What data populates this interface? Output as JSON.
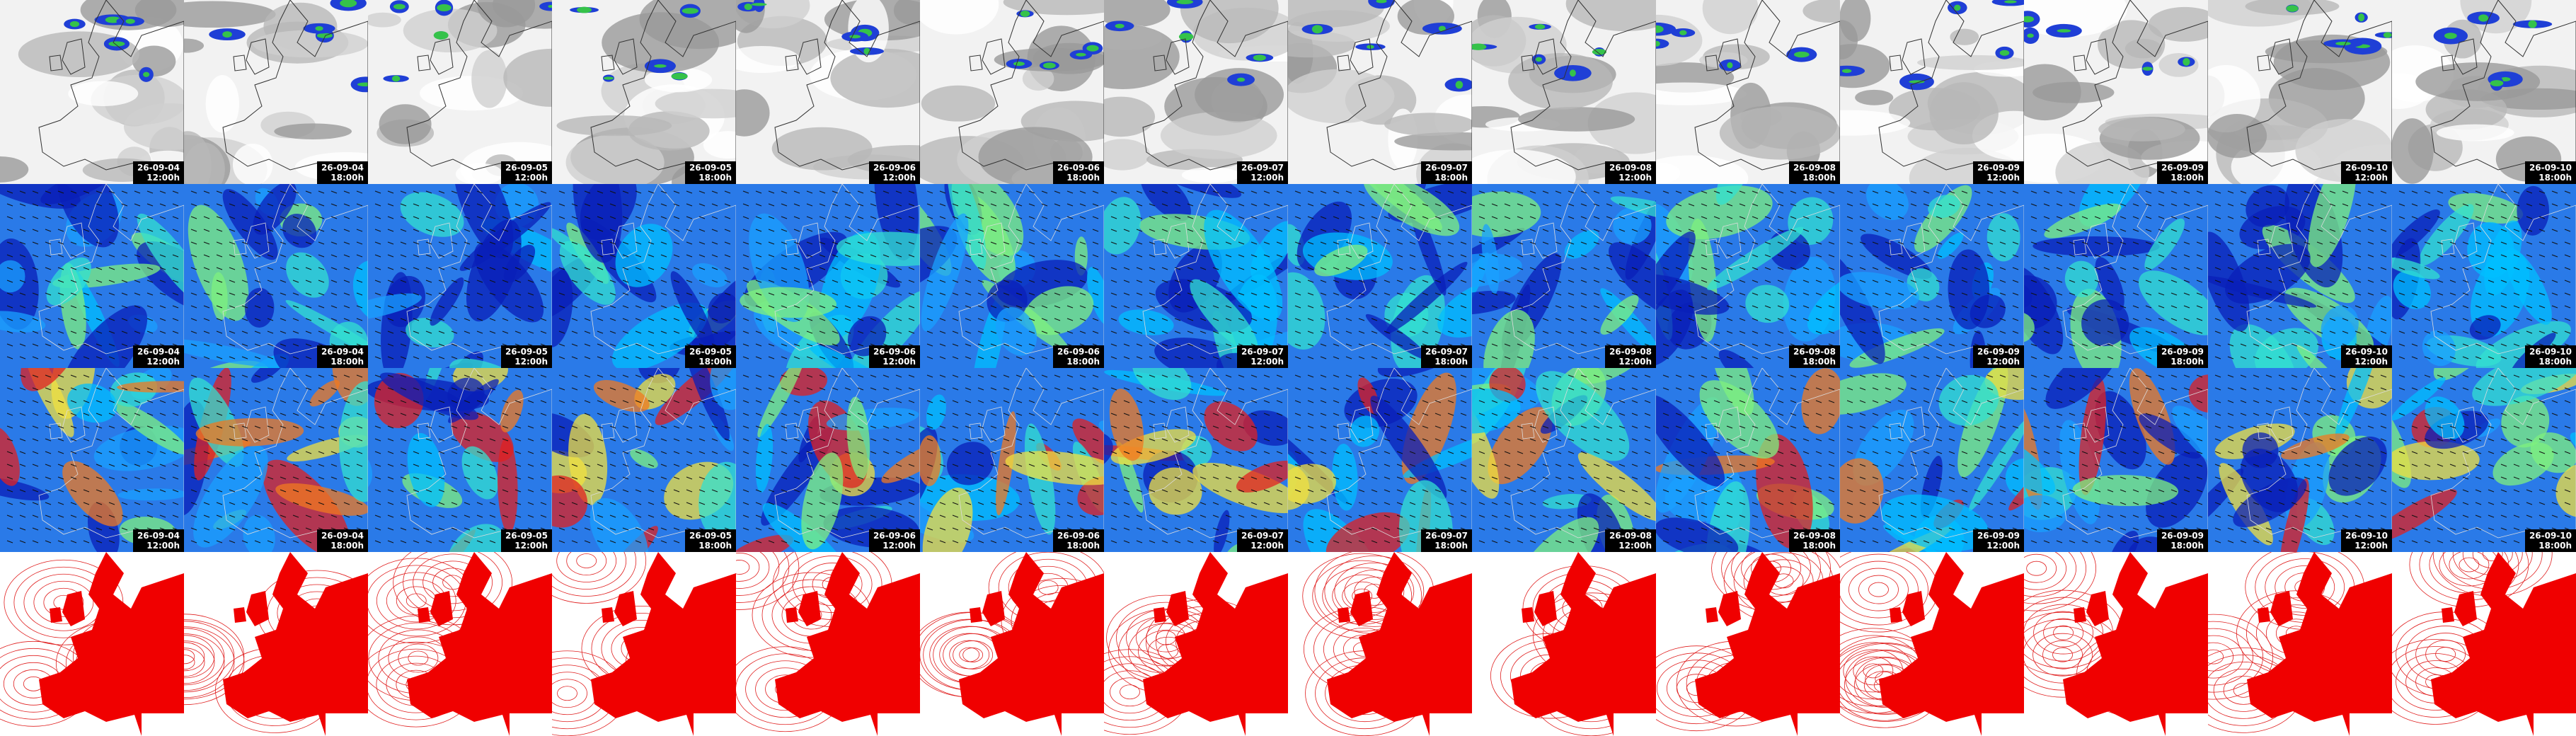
{
  "columns": [
    {
      "date": "26-09-04",
      "time": "12:00h"
    },
    {
      "date": "26-09-04",
      "time": "18:00h"
    },
    {
      "date": "26-09-05",
      "time": "12:00h"
    },
    {
      "date": "26-09-05",
      "time": "18:00h"
    },
    {
      "date": "26-09-06",
      "time": "12:00h"
    },
    {
      "date": "26-09-06",
      "time": "18:00h"
    },
    {
      "date": "26-09-07",
      "time": "12:00h"
    },
    {
      "date": "26-09-07",
      "time": "18:00h"
    },
    {
      "date": "26-09-08",
      "time": "12:00h"
    },
    {
      "date": "26-09-08",
      "time": "18:00h"
    },
    {
      "date": "26-09-09",
      "time": "12:00h"
    },
    {
      "date": "26-09-09",
      "time": "18:00h"
    },
    {
      "date": "26-09-10",
      "time": "12:00h"
    },
    {
      "date": "26-09-10",
      "time": "18:00h"
    }
  ]
}
